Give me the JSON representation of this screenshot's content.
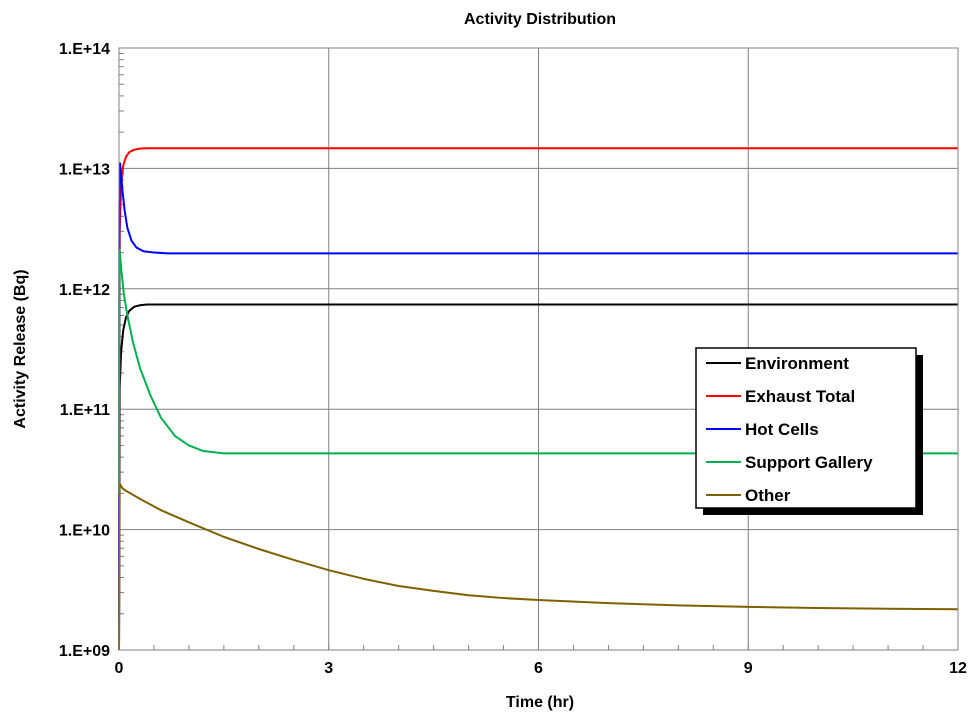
{
  "chart_data": {
    "type": "line",
    "title": "Activity Distribution",
    "xlabel": "Time (hr)",
    "ylabel": "Activity Release (Bq)",
    "xlim": [
      0,
      12
    ],
    "ylim": [
      1000000000.0,
      100000000000000.0
    ],
    "yscale": "log",
    "grid": true,
    "legend_position": "right",
    "x_ticks": [
      "0",
      "3",
      "6",
      "9",
      "12"
    ],
    "y_ticks": [
      "1.E+09",
      "1.E+10",
      "1.E+11",
      "1.E+12",
      "1.E+13",
      "1.E+14"
    ],
    "series": [
      {
        "name": "Environment",
        "color": "#000000",
        "points": [
          [
            0,
            1000000000.0
          ],
          [
            0.01,
            150000000000.0
          ],
          [
            0.03,
            300000000000.0
          ],
          [
            0.06,
            450000000000.0
          ],
          [
            0.1,
            580000000000.0
          ],
          [
            0.15,
            660000000000.0
          ],
          [
            0.22,
            710000000000.0
          ],
          [
            0.3,
            730000000000.0
          ],
          [
            0.4,
            740000000000.0
          ],
          [
            0.6,
            740000000000.0
          ],
          [
            1,
            740000000000.0
          ],
          [
            3,
            740000000000.0
          ],
          [
            6,
            740000000000.0
          ],
          [
            9,
            740000000000.0
          ],
          [
            12,
            740000000000.0
          ]
        ]
      },
      {
        "name": "Exhaust Total",
        "color": "#ff0000",
        "points": [
          [
            0,
            1000000000.0
          ],
          [
            0.01,
            3000000000000.0
          ],
          [
            0.03,
            7000000000000.0
          ],
          [
            0.06,
            10500000000000.0
          ],
          [
            0.1,
            12500000000000.0
          ],
          [
            0.15,
            13700000000000.0
          ],
          [
            0.22,
            14300000000000.0
          ],
          [
            0.3,
            14600000000000.0
          ],
          [
            0.4,
            14700000000000.0
          ],
          [
            0.6,
            14700000000000.0
          ],
          [
            1,
            14700000000000.0
          ],
          [
            3,
            14700000000000.0
          ],
          [
            6,
            14700000000000.0
          ],
          [
            9,
            14700000000000.0
          ],
          [
            12,
            14700000000000.0
          ]
        ]
      },
      {
        "name": "Hot Cells",
        "color": "#0000ff",
        "points": [
          [
            0,
            1000000000.0
          ],
          [
            0.005,
            5000000000000.0
          ],
          [
            0.015,
            11000000000000.0
          ],
          [
            0.03,
            9000000000000.0
          ],
          [
            0.05,
            6500000000000.0
          ],
          [
            0.08,
            4500000000000.0
          ],
          [
            0.12,
            3200000000000.0
          ],
          [
            0.18,
            2500000000000.0
          ],
          [
            0.25,
            2200000000000.0
          ],
          [
            0.35,
            2050000000000.0
          ],
          [
            0.5,
            2000000000000.0
          ],
          [
            0.7,
            1970000000000.0
          ],
          [
            1,
            1970000000000.0
          ],
          [
            3,
            1970000000000.0
          ],
          [
            6,
            1970000000000.0
          ],
          [
            9,
            1970000000000.0
          ],
          [
            12,
            1970000000000.0
          ]
        ]
      },
      {
        "name": "Support Gallery",
        "color": "#00b050",
        "points": [
          [
            0,
            20000000000.0
          ],
          [
            0.005,
            1000000000000.0
          ],
          [
            0.01,
            2100000000000.0
          ],
          [
            0.03,
            1500000000000.0
          ],
          [
            0.07,
            900000000000.0
          ],
          [
            0.12,
            600000000000.0
          ],
          [
            0.2,
            360000000000.0
          ],
          [
            0.3,
            220000000000.0
          ],
          [
            0.45,
            130000000000.0
          ],
          [
            0.6,
            85000000000.0
          ],
          [
            0.8,
            60000000000.0
          ],
          [
            1.0,
            50000000000.0
          ],
          [
            1.2,
            45000000000.0
          ],
          [
            1.5,
            43000000000.0
          ],
          [
            2,
            43000000000.0
          ],
          [
            3,
            43000000000.0
          ],
          [
            6,
            43000000000.0
          ],
          [
            9,
            43000000000.0
          ],
          [
            12,
            43000000000.0
          ]
        ]
      },
      {
        "name": "Other",
        "color": "#7f6000",
        "points": [
          [
            0,
            1000000000.0
          ],
          [
            0.01,
            24000000000.0
          ],
          [
            0.05,
            22000000000.0
          ],
          [
            0.1,
            21000000000.0
          ],
          [
            0.3,
            18000000000.0
          ],
          [
            0.6,
            14500000000.0
          ],
          [
            1,
            11500000000.0
          ],
          [
            1.5,
            8700000000.0
          ],
          [
            2,
            6900000000.0
          ],
          [
            2.5,
            5600000000.0
          ],
          [
            3,
            4600000000.0
          ],
          [
            3.5,
            3900000000.0
          ],
          [
            4,
            3400000000.0
          ],
          [
            4.5,
            3100000000.0
          ],
          [
            5,
            2850000000.0
          ],
          [
            5.5,
            2700000000.0
          ],
          [
            6,
            2600000000.0
          ],
          [
            7,
            2450000000.0
          ],
          [
            8,
            2350000000.0
          ],
          [
            9,
            2280000000.0
          ],
          [
            10,
            2230000000.0
          ],
          [
            11,
            2200000000.0
          ],
          [
            12,
            2180000000.0
          ]
        ]
      }
    ]
  }
}
